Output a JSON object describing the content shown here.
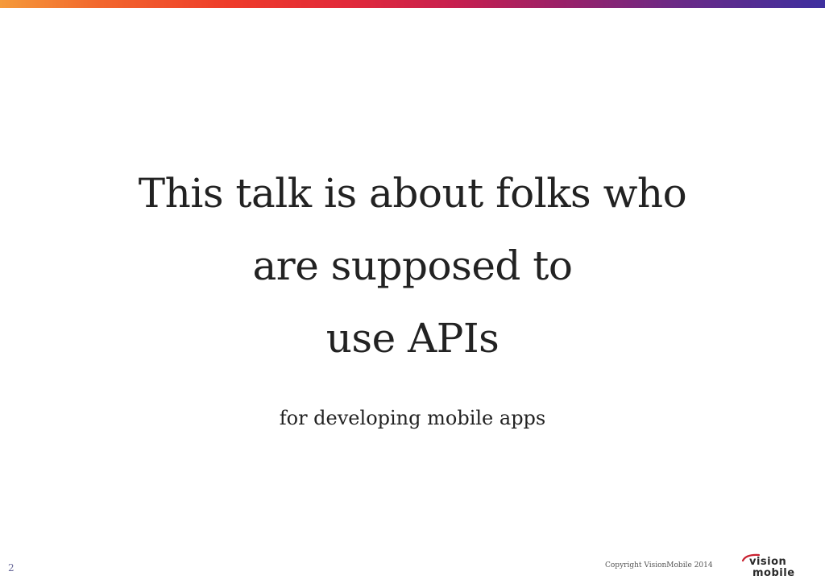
{
  "slide": {
    "headline": [
      "This talk is about folks who",
      "are supposed to",
      "use APIs"
    ],
    "subline": "for developing mobile apps",
    "page_number": "2",
    "copyright": "Copyright VisionMobile 2014",
    "logo": {
      "line1": "vision",
      "line2": "mobile"
    }
  },
  "colors": {
    "text": "#222222",
    "bar_start": "#f59a3a",
    "bar_end": "#3e2f9f"
  }
}
